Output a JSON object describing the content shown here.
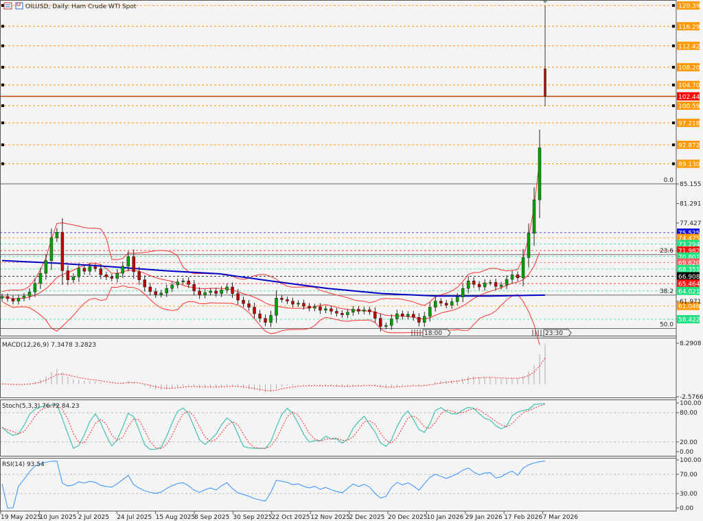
{
  "header": {
    "title": "OILUSD, Daily:  Ham Crude WTI Spot",
    "icons": [
      "menu-icon",
      "template-icon"
    ]
  },
  "colors": {
    "background": "#f4f4f4",
    "bull": "#00a000",
    "bear": "#c00000",
    "level_orange": "#ff9900",
    "ma": "#0000c8",
    "bands": "#ff3030",
    "stoch_main": "#40c0b0",
    "signal": "#ff2020",
    "rsi": "#3090ff",
    "current_price": "#ff0000"
  },
  "chart_data": [
    {
      "type": "candlestick",
      "symbol": "OILUSD",
      "timeframe": "Daily",
      "x_tick_labels": [
        "19 May 2025",
        "10 Jun 2025",
        "2 Jul 2025",
        "24 Jul 2025",
        "15 Aug 2025",
        "8 Sep 2025",
        "30 Sep 2025",
        "22 Oct 2025",
        "12 Nov 2025",
        "2 Dec 2025",
        "20 Dec 2025",
        "10 Jan 2026",
        "29 Jan 2026",
        "17 Feb 2026",
        "7 Mar 2026"
      ],
      "ylim": [
        56.0,
        120.396
      ],
      "closes": [
        62.9,
        62.5,
        62.0,
        62.6,
        63.0,
        63.8,
        65.5,
        67.5,
        70.0,
        74.5,
        75.6,
        68.0,
        66.2,
        66.8,
        68.5,
        67.9,
        68.8,
        68.4,
        67.2,
        66.8,
        66.5,
        67.5,
        68.9,
        70.8,
        67.8,
        66.2,
        64.8,
        63.9,
        63.3,
        63.6,
        64.5,
        65.2,
        65.8,
        66.0,
        65.3,
        64.0,
        63.2,
        63.7,
        64.0,
        63.5,
        64.2,
        64.8,
        63.5,
        62.2,
        61.5,
        60.8,
        59.5,
        58.6,
        57.8,
        59.2,
        62.6,
        62.3,
        62.0,
        61.4,
        61.6,
        61.0,
        60.6,
        60.9,
        60.2,
        60.5,
        60.0,
        59.6,
        59.3,
        59.8,
        60.4,
        60.0,
        60.3,
        59.9,
        58.6,
        57.0,
        57.2,
        58.5,
        59.5,
        59.0,
        59.4,
        58.8,
        57.8,
        59.0,
        60.8,
        62.0,
        61.6,
        61.2,
        61.9,
        62.8,
        64.5,
        66.0,
        65.3,
        64.8,
        65.6,
        65.7,
        64.9,
        65.2,
        66.3,
        67.2,
        66.6,
        70.6,
        75.4,
        82.0,
        92.3
      ],
      "last_bar": {
        "open": 107.9,
        "high": 120.396,
        "low": 100.5,
        "close": 102.445
      },
      "ma_line": [
        70.0,
        69.5,
        68.8,
        68.0,
        67.4,
        65.9,
        64.5,
        63.5,
        63.0,
        63.0,
        63.2
      ],
      "current_price": "102.445",
      "axis_ticks": [
        "85.155",
        "81.291",
        "77.427",
        "61.971"
      ],
      "levels_orange": [
        "120.396",
        "116.292",
        "112.429",
        "108.203",
        "104.703",
        "100.598",
        "97.218",
        "92.872",
        "89.130"
      ],
      "levels_colored": [
        {
          "value": "75.525",
          "color": "#1010e0",
          "text": "#ffffff"
        },
        {
          "value": "74.475",
          "color": "#ff9900",
          "text": "#ffffff"
        },
        {
          "value": "73.294",
          "color": "#20e080",
          "text": "#ffffff"
        },
        {
          "value": "71.982",
          "color": "#ff1010",
          "text": "#ffffff"
        },
        {
          "value": "70.801",
          "color": "#20e080",
          "text": "#ffffff"
        },
        {
          "value": "69.620",
          "color": "#ff6060",
          "text": "#ffffff"
        },
        {
          "value": "68.351",
          "color": "#20e080",
          "text": "#ffffff"
        },
        {
          "value": "66.908",
          "color": "#000000",
          "text": "#ffffff"
        },
        {
          "value": "65.464",
          "color": "#ff1010",
          "text": "#ffffff"
        },
        {
          "value": "64.021",
          "color": "#20e080",
          "text": "#ffffff"
        },
        {
          "value": "61.046",
          "color": "#ff9900",
          "text": "#ffffff"
        },
        {
          "value": "58.422",
          "color": "#20e080",
          "text": "#ffffff"
        }
      ],
      "fibonacci": [
        {
          "label": "0.0",
          "value": 85.155
        },
        {
          "label": "23.6",
          "value": 71.2
        },
        {
          "label": "38.2",
          "value": 63.2
        },
        {
          "label": "50.0",
          "value": 56.6
        }
      ],
      "session_markers": [
        "18:00",
        "23:30",
        "1"
      ]
    },
    {
      "type": "macd",
      "label": "MACD(12,26,9) 7.3478 3.2823",
      "ylim": [
        -2.5766,
        8.2908
      ],
      "axis_ticks": [
        "8.2908",
        "-2.5766"
      ]
    },
    {
      "type": "stochastic",
      "label": "Stoch(5,3,3) 76.72 84.23",
      "ylim": [
        0,
        100
      ],
      "axis_ticks": [
        "100.00",
        "80.00",
        "20.00",
        "0.00"
      ]
    },
    {
      "type": "rsi",
      "label": "RSI(14) 93.54",
      "ylim": [
        0,
        100
      ],
      "axis_ticks": [
        "100.00",
        "70.00",
        "30.00",
        "0.00"
      ]
    }
  ]
}
